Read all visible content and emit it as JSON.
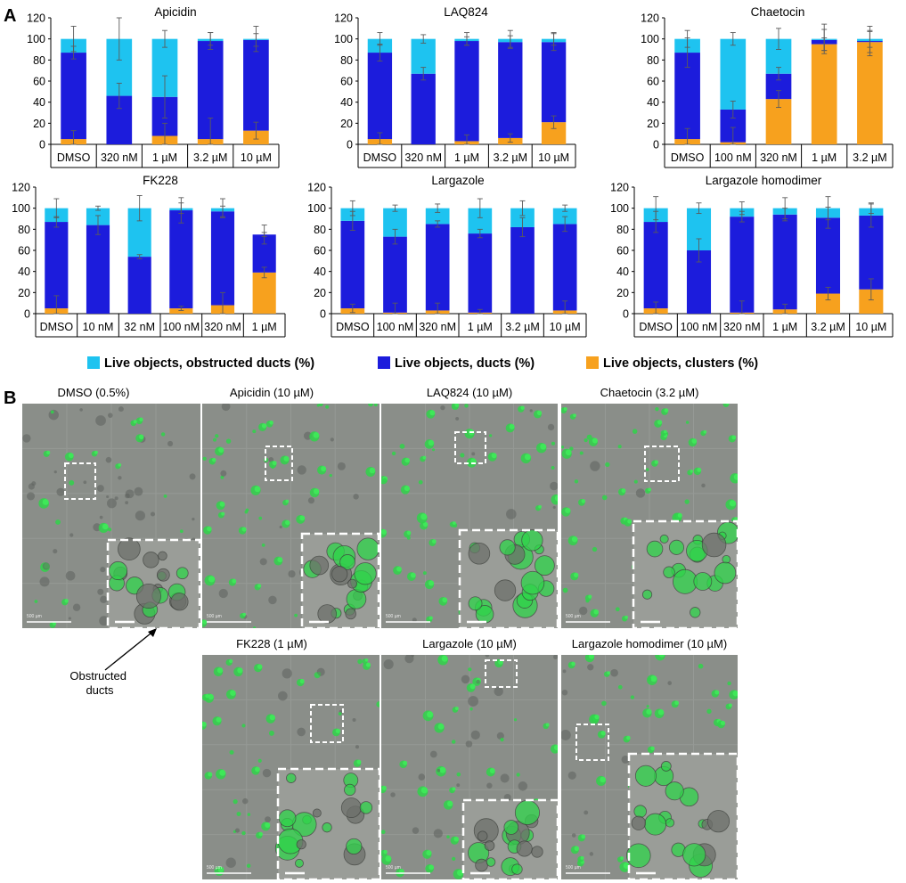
{
  "panel_a_label": "A",
  "panel_b_label": "B",
  "colors": {
    "obstructed": "#1EC3F0",
    "ducts": "#1C1CDC",
    "clusters": "#F7A11E"
  },
  "legend": {
    "obstructed": "Live objects, obstructed ducts (%)",
    "ducts": "Live objects, ducts (%)",
    "clusters": "Live objects, clusters (%)"
  },
  "chart_data": [
    {
      "type": "bar",
      "stacked": true,
      "title": "Apicidin",
      "categories": [
        "DMSO",
        "320 nM",
        "1 µM",
        "3.2 µM",
        "10 µM"
      ],
      "yticks": [
        "0",
        "20",
        "40",
        "60",
        "80",
        "100",
        "120"
      ],
      "ylim": [
        0,
        120
      ],
      "series": [
        {
          "name": "Live objects, clusters (%)",
          "values": [
            5,
            0,
            8,
            5,
            13
          ]
        },
        {
          "name": "Live objects, ducts (%)",
          "values": [
            82,
            46,
            37,
            93,
            86
          ]
        },
        {
          "name": "Live objects, obstructed ducts (%)",
          "values": [
            13,
            54,
            55,
            2,
            1
          ]
        }
      ],
      "totals": [
        100,
        100,
        100,
        100,
        100
      ]
    },
    {
      "type": "bar",
      "stacked": true,
      "title": "LAQ824",
      "categories": [
        "DMSO",
        "320 nM",
        "1 µM",
        "3.2 µM",
        "10 µM"
      ],
      "yticks": [
        "0",
        "20",
        "40",
        "60",
        "80",
        "100",
        "120"
      ],
      "ylim": [
        0,
        120
      ],
      "series": [
        {
          "name": "Live objects, clusters (%)",
          "values": [
            5,
            0,
            3,
            6,
            21
          ]
        },
        {
          "name": "Live objects, ducts (%)",
          "values": [
            82,
            67,
            95,
            91,
            76
          ]
        },
        {
          "name": "Live objects, obstructed ducts (%)",
          "values": [
            13,
            33,
            2,
            3,
            3
          ]
        }
      ],
      "totals": [
        100,
        100,
        100,
        100,
        100
      ]
    },
    {
      "type": "bar",
      "stacked": true,
      "title": "Chaetocin",
      "categories": [
        "DMSO",
        "100 nM",
        "320 nM",
        "1 µM",
        "3.2 µM"
      ],
      "yticks": [
        "0",
        "20",
        "40",
        "60",
        "80",
        "100",
        "120"
      ],
      "ylim": [
        0,
        120
      ],
      "series": [
        {
          "name": "Live objects, clusters (%)",
          "values": [
            5,
            2,
            43,
            95,
            97
          ]
        },
        {
          "name": "Live objects, ducts (%)",
          "values": [
            82,
            31,
            24,
            4,
            1
          ]
        },
        {
          "name": "Live objects, obstructed ducts (%)",
          "values": [
            13,
            67,
            33,
            1,
            2
          ]
        }
      ],
      "totals": [
        100,
        100,
        100,
        100,
        100
      ]
    },
    {
      "type": "bar",
      "stacked": true,
      "title": "FK228",
      "categories": [
        "DMSO",
        "10 nM",
        "32 nM",
        "100 nM",
        "320 nM",
        "1 µM"
      ],
      "yticks": [
        "0",
        "20",
        "40",
        "60",
        "80",
        "100",
        "120"
      ],
      "ylim": [
        0,
        120
      ],
      "series": [
        {
          "name": "Live objects, clusters (%)",
          "values": [
            5,
            0,
            0,
            5,
            8,
            39
          ]
        },
        {
          "name": "Live objects, ducts (%)",
          "values": [
            82,
            84,
            54,
            93,
            89,
            36
          ]
        },
        {
          "name": "Live objects, obstructed ducts (%)",
          "values": [
            13,
            16,
            46,
            2,
            3,
            0
          ]
        }
      ],
      "totals": [
        100,
        100,
        100,
        100,
        100,
        75
      ]
    },
    {
      "type": "bar",
      "stacked": true,
      "title": "Largazole",
      "categories": [
        "DMSO",
        "100 nM",
        "320 nM",
        "1 µM",
        "3.2 µM",
        "10 µM"
      ],
      "yticks": [
        "0",
        "20",
        "40",
        "60",
        "80",
        "100",
        "120"
      ],
      "ylim": [
        0,
        120
      ],
      "series": [
        {
          "name": "Live objects, clusters (%)",
          "values": [
            5,
            1,
            3,
            1,
            0,
            3
          ]
        },
        {
          "name": "Live objects, ducts (%)",
          "values": [
            83,
            72,
            82,
            75,
            82,
            82
          ]
        },
        {
          "name": "Live objects, obstructed ducts (%)",
          "values": [
            12,
            27,
            15,
            24,
            18,
            15
          ]
        }
      ],
      "totals": [
        100,
        100,
        100,
        100,
        100,
        100
      ]
    },
    {
      "type": "bar",
      "stacked": true,
      "title": "Largazole homodimer",
      "categories": [
        "DMSO",
        "100 nM",
        "320 nM",
        "1 µM",
        "3.2 µM",
        "10 µM"
      ],
      "yticks": [
        "0",
        "20",
        "40",
        "60",
        "80",
        "100",
        "120"
      ],
      "ylim": [
        0,
        120
      ],
      "series": [
        {
          "name": "Live objects, clusters (%)",
          "values": [
            5,
            0,
            1,
            4,
            19,
            23
          ]
        },
        {
          "name": "Live objects, ducts (%)",
          "values": [
            82,
            60,
            91,
            90,
            72,
            70
          ]
        },
        {
          "name": "Live objects, obstructed ducts (%)",
          "values": [
            13,
            40,
            8,
            6,
            9,
            7
          ]
        }
      ],
      "totals": [
        100,
        100,
        100,
        100,
        100,
        100
      ]
    }
  ],
  "micrographs": [
    {
      "label": "DMSO (0.5%)",
      "scale": "500 µm"
    },
    {
      "label": "Apicidin (10 µM)",
      "scale": "500 µm"
    },
    {
      "label": "LAQ824 (10 µM)",
      "scale": "500 µm"
    },
    {
      "label": "Chaetocin (3.2 µM)",
      "scale": "500 µm"
    },
    {
      "label": "FK228 (1 µM)",
      "scale": "500 µm"
    },
    {
      "label": "Largazole (10 µM)",
      "scale": "500 µm"
    },
    {
      "label": "Largazole homodimer (10 µM)",
      "scale": "500 µm"
    }
  ],
  "annotation": "Obstructed ducts"
}
